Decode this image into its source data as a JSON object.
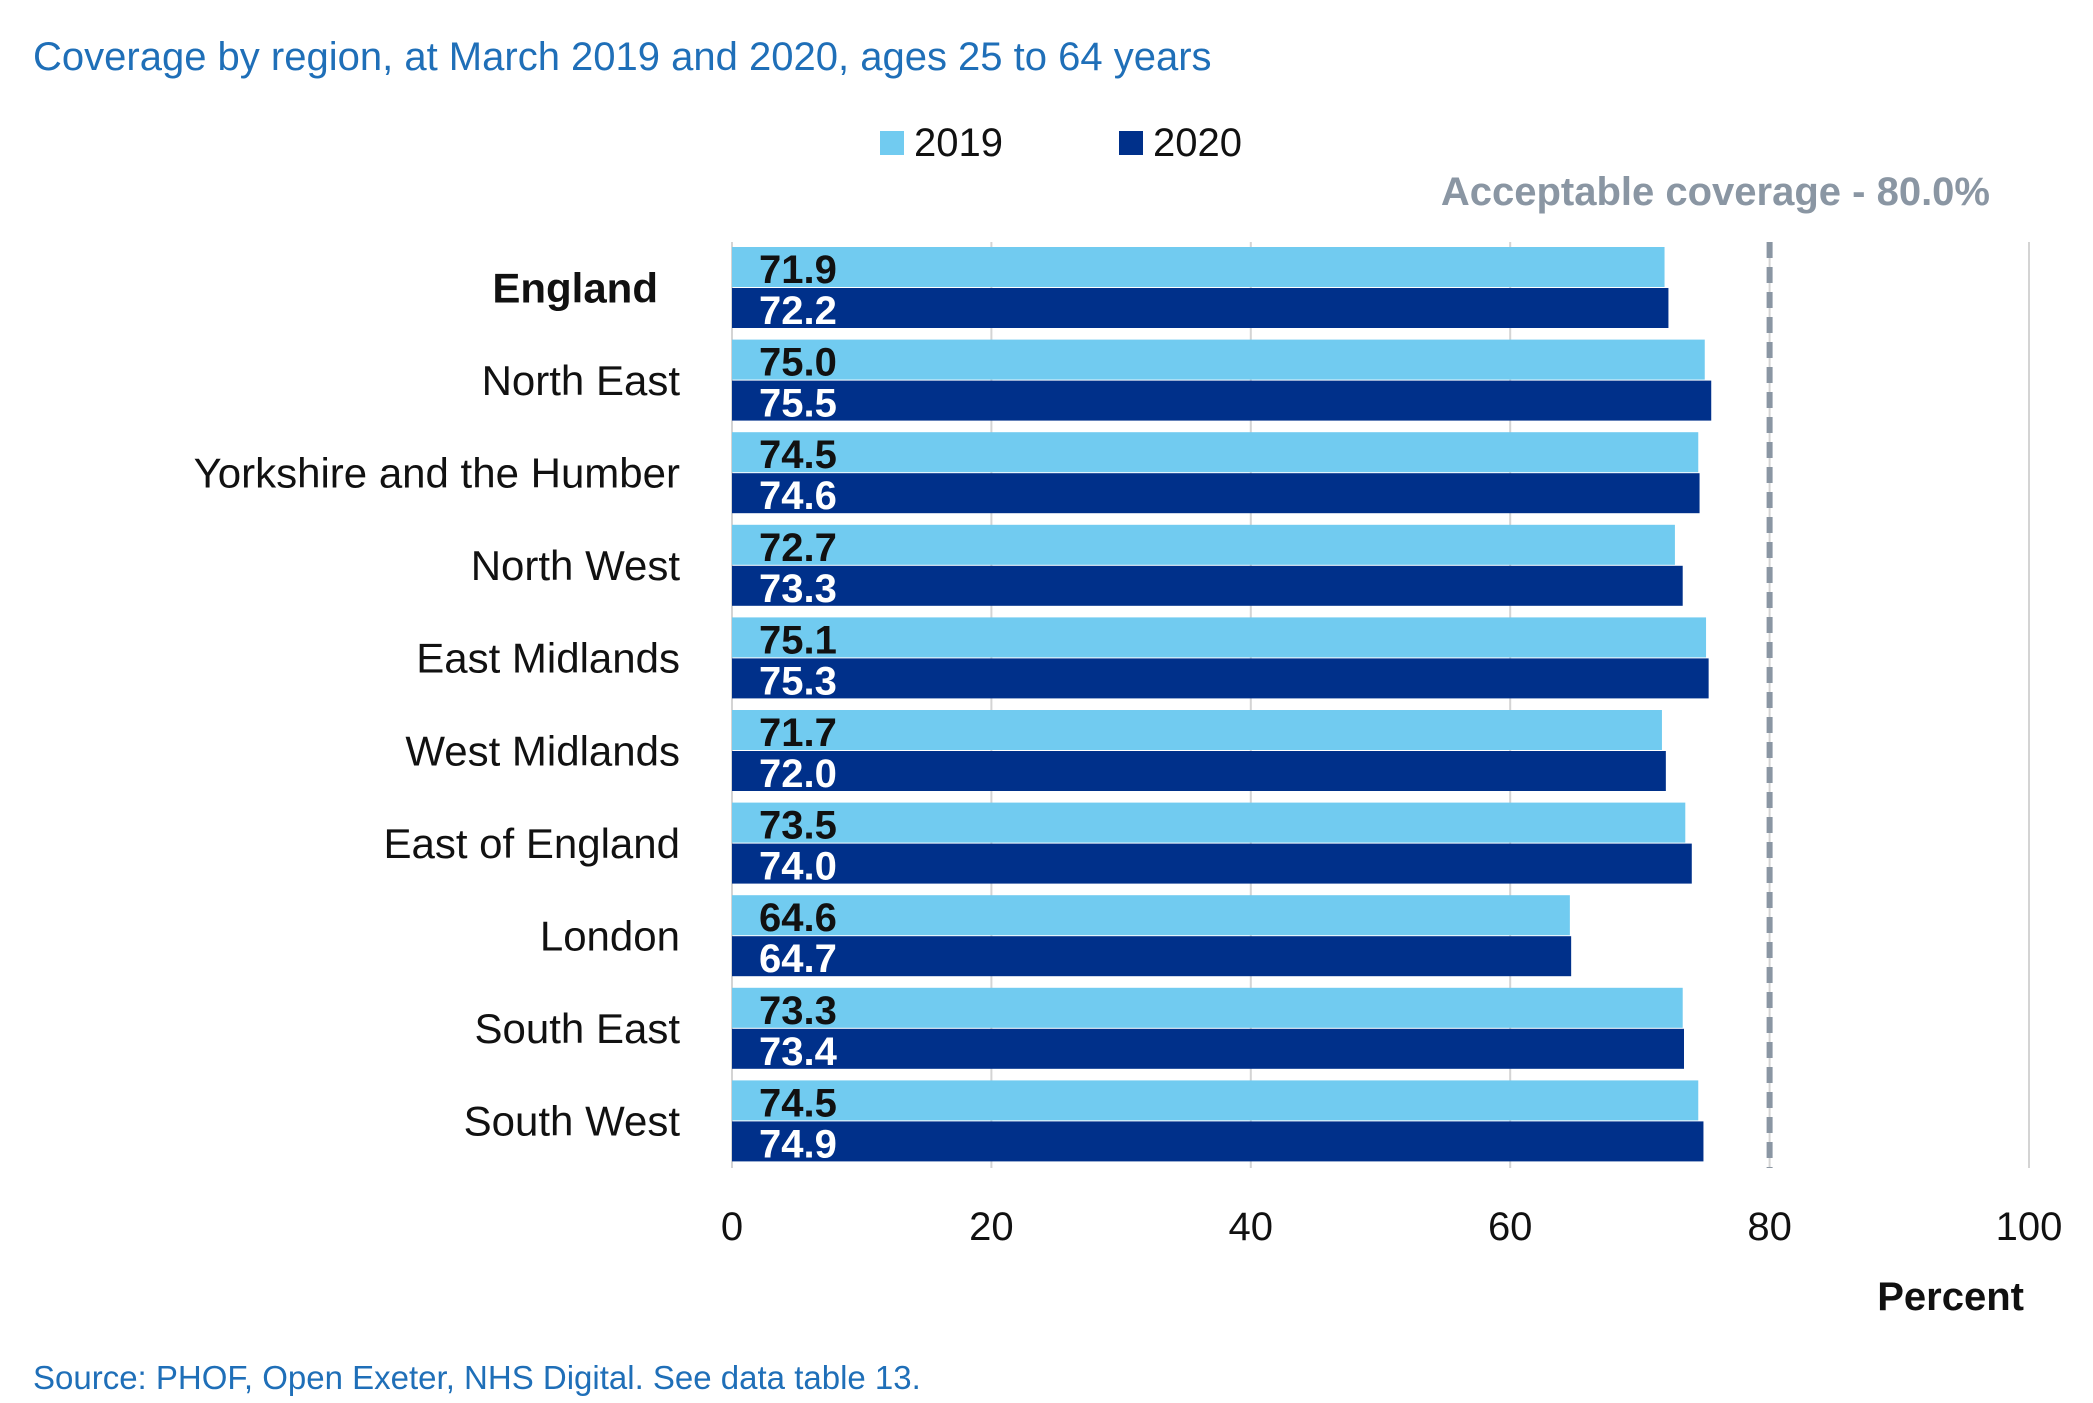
{
  "chart_data": {
    "type": "bar",
    "orientation": "horizontal",
    "title": "Coverage by region, at March 2019 and 2020, ages 25 to 64 years",
    "xlabel": "Percent",
    "ylabel": "",
    "xlim": [
      0,
      100
    ],
    "x_ticks": [
      "0",
      "20",
      "40",
      "60",
      "80",
      "100"
    ],
    "grid": "vertical",
    "legend_position": "top",
    "categories": [
      "England",
      "North East",
      "Yorkshire and the Humber",
      "North West",
      "East Midlands",
      "West Midlands",
      "East of England",
      "London",
      "South East",
      "South West"
    ],
    "bold_categories": [
      "England"
    ],
    "series": [
      {
        "name": "2019",
        "color": "#71CBF0",
        "label_color": "#111111",
        "values": [
          71.9,
          75.0,
          74.5,
          72.7,
          75.1,
          71.7,
          73.5,
          64.6,
          73.3,
          74.5
        ],
        "labels": [
          "71.9",
          "75.0",
          "74.5",
          "72.7",
          "75.1",
          "71.7",
          "73.5",
          "64.6",
          "73.3",
          "74.5"
        ]
      },
      {
        "name": "2020",
        "color": "#00308A",
        "label_color": "#ffffff",
        "values": [
          72.2,
          75.5,
          74.6,
          73.3,
          75.3,
          72.0,
          74.0,
          64.7,
          73.4,
          74.9
        ],
        "labels": [
          "72.2",
          "75.5",
          "74.6",
          "73.3",
          "75.3",
          "72.0",
          "74.0",
          "64.7",
          "73.4",
          "74.9"
        ]
      }
    ],
    "reference_line": {
      "value": 80,
      "label": "Acceptable coverage - 80.0%",
      "color": "#8A96A3",
      "style": "dashed"
    },
    "source": "Source: PHOF, Open Exeter, NHS Digital. See data table 13.",
    "colors": {
      "title": "#1F6FB8",
      "source": "#1F6FB8",
      "grid": "#D4D4D4",
      "axis_text": "#111111"
    }
  }
}
